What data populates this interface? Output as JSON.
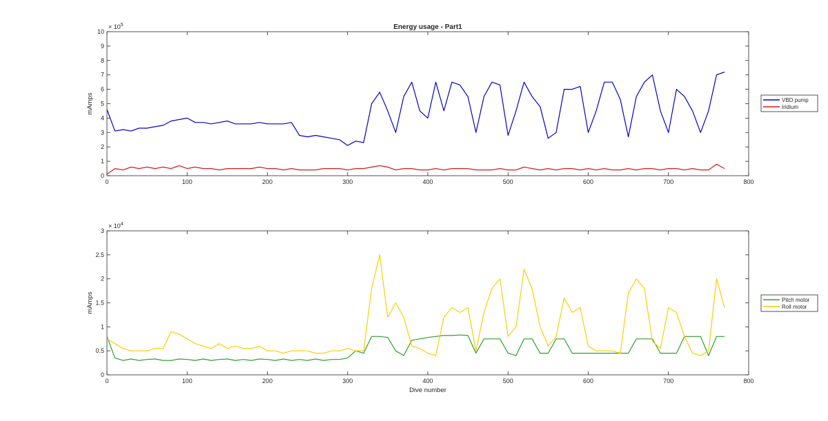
{
  "chart_data": [
    {
      "type": "line",
      "title": "Energy usage - Part1",
      "ylabel": "mAmps",
      "xlabel": "",
      "y_exponent_label": "× 10",
      "y_exponent_power": "5",
      "xlim": [
        0,
        800
      ],
      "ylim": [
        0,
        10
      ],
      "y_scale_note": "values in units of 1e5 mAmps",
      "x_ticks": [
        "0",
        "100",
        "200",
        "300",
        "400",
        "500",
        "600",
        "700",
        "800"
      ],
      "y_ticks": [
        "0",
        "1",
        "2",
        "3",
        "4",
        "5",
        "6",
        "7",
        "8",
        "9",
        "10"
      ],
      "legend_position": "outside-right",
      "x": [
        0,
        10,
        20,
        30,
        40,
        50,
        60,
        70,
        80,
        90,
        100,
        110,
        120,
        130,
        140,
        150,
        160,
        170,
        180,
        190,
        200,
        210,
        220,
        230,
        240,
        250,
        260,
        270,
        280,
        290,
        300,
        310,
        320,
        330,
        340,
        350,
        360,
        370,
        380,
        390,
        400,
        410,
        420,
        430,
        440,
        450,
        460,
        470,
        480,
        490,
        500,
        510,
        520,
        530,
        540,
        550,
        560,
        570,
        580,
        590,
        600,
        610,
        620,
        630,
        640,
        650,
        660,
        670,
        680,
        690,
        700,
        710,
        720,
        730,
        740,
        750,
        760,
        770
      ],
      "series": [
        {
          "name": "VBD pump",
          "color": "#0000c8",
          "values": [
            4.6,
            3.1,
            3.2,
            3.1,
            3.3,
            3.3,
            3.4,
            3.5,
            3.8,
            3.9,
            4.0,
            3.7,
            3.7,
            3.6,
            3.7,
            3.8,
            3.6,
            3.6,
            3.6,
            3.7,
            3.6,
            3.6,
            3.6,
            3.7,
            2.8,
            2.7,
            2.8,
            2.7,
            2.6,
            2.5,
            2.1,
            2.4,
            2.3,
            5.0,
            5.8,
            4.5,
            3.0,
            5.5,
            6.5,
            4.5,
            4.0,
            6.5,
            4.5,
            6.5,
            6.3,
            5.5,
            3.0,
            5.5,
            6.5,
            6.3,
            2.8,
            4.5,
            6.5,
            5.5,
            4.8,
            2.6,
            3.0,
            6.0,
            6.0,
            6.2,
            3.0,
            4.5,
            6.5,
            6.5,
            5.3,
            2.7,
            5.5,
            6.5,
            7.0,
            4.5,
            3.0,
            6.0,
            5.5,
            4.5,
            3.0,
            4.5,
            7.0,
            7.2
          ]
        },
        {
          "name": "Iridium",
          "color": "#d7191c",
          "values": [
            0.1,
            0.5,
            0.4,
            0.6,
            0.5,
            0.6,
            0.5,
            0.6,
            0.5,
            0.7,
            0.5,
            0.6,
            0.5,
            0.5,
            0.4,
            0.5,
            0.5,
            0.5,
            0.5,
            0.6,
            0.5,
            0.5,
            0.4,
            0.5,
            0.4,
            0.4,
            0.4,
            0.5,
            0.5,
            0.5,
            0.4,
            0.5,
            0.5,
            0.6,
            0.7,
            0.6,
            0.4,
            0.5,
            0.5,
            0.4,
            0.4,
            0.5,
            0.4,
            0.5,
            0.5,
            0.5,
            0.4,
            0.4,
            0.4,
            0.5,
            0.4,
            0.4,
            0.6,
            0.5,
            0.4,
            0.5,
            0.4,
            0.5,
            0.5,
            0.4,
            0.5,
            0.4,
            0.5,
            0.4,
            0.4,
            0.5,
            0.4,
            0.5,
            0.5,
            0.4,
            0.5,
            0.5,
            0.4,
            0.5,
            0.4,
            0.4,
            0.8,
            0.5
          ]
        }
      ]
    },
    {
      "type": "line",
      "title": "",
      "ylabel": "mAmps",
      "xlabel": "Dive number",
      "y_exponent_label": "× 10",
      "y_exponent_power": "4",
      "xlim": [
        0,
        800
      ],
      "ylim": [
        0,
        3
      ],
      "y_scale_note": "values in units of 1e4 mAmps",
      "x_ticks": [
        "0",
        "100",
        "200",
        "300",
        "400",
        "500",
        "600",
        "700",
        "800"
      ],
      "y_ticks": [
        "0",
        "0.5",
        "1",
        "1.5",
        "2",
        "2.5",
        "3"
      ],
      "legend_position": "outside-right",
      "x": [
        0,
        10,
        20,
        30,
        40,
        50,
        60,
        70,
        80,
        90,
        100,
        110,
        120,
        130,
        140,
        150,
        160,
        170,
        180,
        190,
        200,
        210,
        220,
        230,
        240,
        250,
        260,
        270,
        280,
        290,
        300,
        310,
        320,
        330,
        340,
        350,
        360,
        370,
        380,
        390,
        400,
        410,
        420,
        430,
        440,
        450,
        460,
        470,
        480,
        490,
        500,
        510,
        520,
        530,
        540,
        550,
        560,
        570,
        580,
        590,
        600,
        610,
        620,
        630,
        640,
        650,
        660,
        670,
        680,
        690,
        700,
        710,
        720,
        730,
        740,
        750,
        760,
        770
      ],
      "series": [
        {
          "name": "Pitch motor",
          "color": "#2ca02c",
          "values": [
            0.8,
            0.35,
            0.3,
            0.33,
            0.3,
            0.32,
            0.33,
            0.3,
            0.3,
            0.33,
            0.32,
            0.3,
            0.33,
            0.3,
            0.32,
            0.33,
            0.3,
            0.32,
            0.3,
            0.33,
            0.32,
            0.3,
            0.33,
            0.3,
            0.32,
            0.3,
            0.33,
            0.3,
            0.32,
            0.32,
            0.35,
            0.5,
            0.45,
            0.8,
            0.8,
            0.78,
            0.5,
            0.4,
            0.72,
            0.75,
            0.78,
            0.8,
            0.82,
            0.82,
            0.83,
            0.82,
            0.45,
            0.75,
            0.75,
            0.75,
            0.45,
            0.4,
            0.75,
            0.75,
            0.45,
            0.45,
            0.75,
            0.75,
            0.45,
            0.45,
            0.45,
            0.45,
            0.45,
            0.45,
            0.45,
            0.45,
            0.75,
            0.75,
            0.75,
            0.45,
            0.45,
            0.45,
            0.8,
            0.8,
            0.8,
            0.4,
            0.8,
            0.8
          ]
        },
        {
          "name": "Roll motor",
          "color": "#ffcc00",
          "values": [
            0.75,
            0.65,
            0.55,
            0.5,
            0.5,
            0.5,
            0.55,
            0.55,
            0.9,
            0.85,
            0.75,
            0.65,
            0.6,
            0.55,
            0.65,
            0.55,
            0.6,
            0.55,
            0.55,
            0.6,
            0.5,
            0.5,
            0.45,
            0.5,
            0.5,
            0.5,
            0.45,
            0.45,
            0.5,
            0.5,
            0.55,
            0.5,
            0.5,
            1.8,
            2.5,
            1.2,
            1.5,
            1.2,
            0.6,
            0.55,
            0.45,
            0.4,
            1.2,
            1.4,
            1.3,
            1.4,
            0.5,
            1.3,
            1.8,
            2.0,
            0.8,
            1.0,
            2.2,
            1.8,
            1.0,
            0.6,
            0.8,
            1.6,
            1.3,
            1.4,
            0.6,
            0.5,
            0.5,
            0.5,
            0.45,
            1.7,
            2.0,
            1.8,
            0.7,
            0.55,
            1.4,
            1.3,
            0.8,
            0.45,
            0.4,
            0.5,
            2.0,
            1.4
          ]
        }
      ]
    }
  ]
}
